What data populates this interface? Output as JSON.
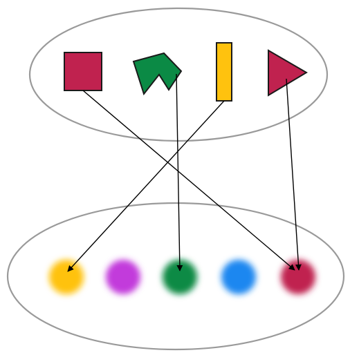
{
  "diagram": {
    "description_kind": "mapping",
    "domain_set": {
      "label": "",
      "shapes": [
        {
          "id": "square",
          "kind": "square",
          "color": "#C0224F"
        },
        {
          "id": "notched-pentagon",
          "kind": "notched-pentagon",
          "color": "#0B8A45"
        },
        {
          "id": "bar",
          "kind": "rectangle",
          "color": "#FFC20E"
        },
        {
          "id": "triangle",
          "kind": "triangle",
          "color": "#C0224F"
        }
      ]
    },
    "codomain_set": {
      "label": "",
      "dots": [
        {
          "id": "yellow-dot",
          "color": "#FFC20E"
        },
        {
          "id": "purple-dot",
          "color": "#C23ADB"
        },
        {
          "id": "green-dot",
          "color": "#0B8A45"
        },
        {
          "id": "blue-dot",
          "color": "#1A87F0"
        },
        {
          "id": "crimson-dot",
          "color": "#C0224F"
        }
      ]
    },
    "mappings": [
      {
        "from": "square",
        "to": "crimson-dot"
      },
      {
        "from": "notched-pentagon",
        "to": "green-dot"
      },
      {
        "from": "bar",
        "to": "yellow-dot"
      },
      {
        "from": "triangle",
        "to": "crimson-dot"
      }
    ],
    "colors": {
      "set_outline": "#9A9A9A",
      "shape_stroke": "#1A1A1A",
      "arrow": "#000000"
    }
  }
}
